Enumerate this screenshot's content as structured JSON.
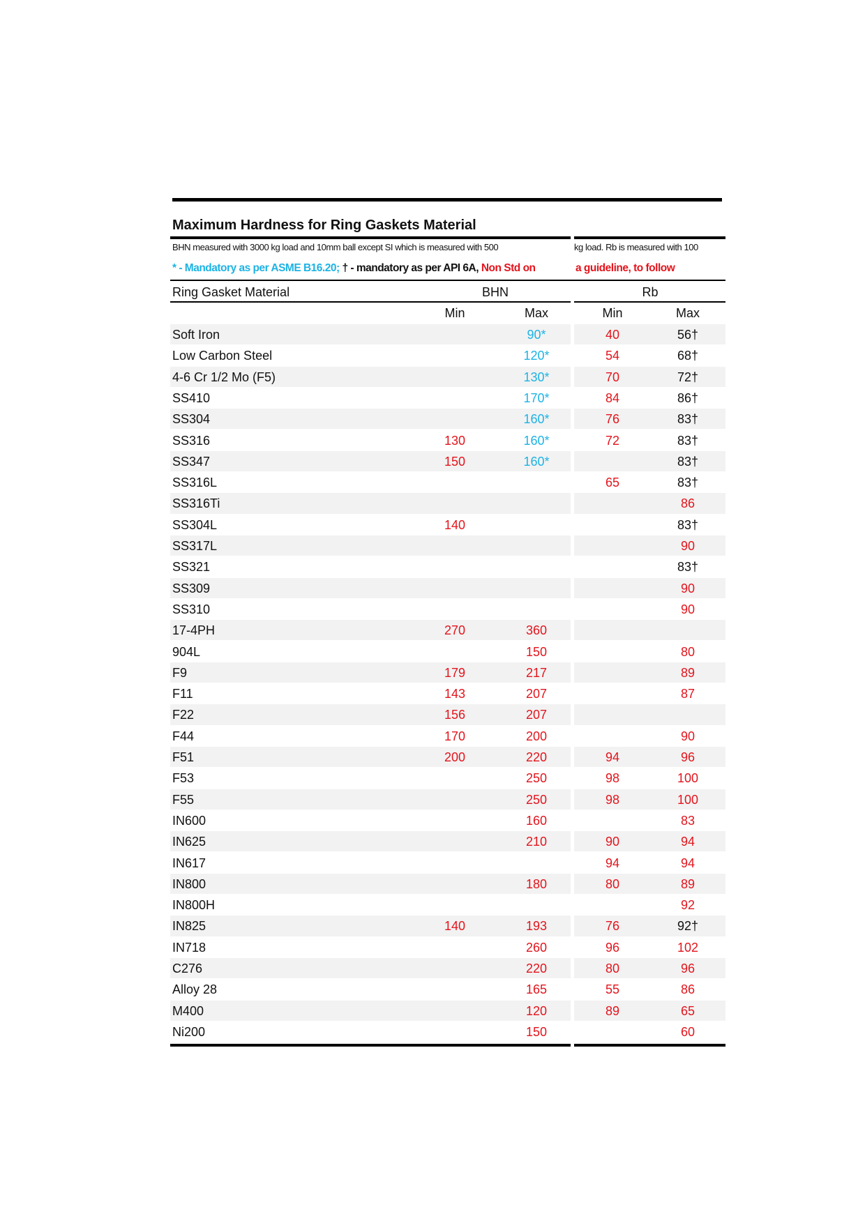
{
  "title": "Maximum Hardness for Ring Gaskets Material",
  "subtitle": [
    "BHN measured with 3000 kg load and 10mm ball except SI which is measured with 500",
    "kg load. Rb is measured with 100"
  ],
  "legend": [
    "* - Mandatory as per ASME B16.20;",
    "† - mandatory as per API 6A,",
    "Non Std on",
    "a guideline, to follow"
  ],
  "table": {
    "header": [
      "Ring Gasket Material",
      "BHN",
      "Rb"
    ],
    "subheader": [
      "Min",
      "Max",
      "Min",
      "Max"
    ],
    "rows": [
      [
        "Soft Iron",
        null,
        "90*",
        40,
        "56†"
      ],
      [
        "Low Carbon Steel",
        null,
        "120*",
        54,
        "68†"
      ],
      [
        "4-6 Cr 1/2 Mo (F5)",
        null,
        "130*",
        70,
        "72†"
      ],
      [
        "SS410",
        null,
        "170*",
        84,
        "86†"
      ],
      [
        "SS304",
        null,
        "160*",
        76,
        "83†"
      ],
      [
        "SS316",
        130,
        "160*",
        72,
        "83†"
      ],
      [
        "SS347",
        150,
        "160*",
        null,
        "83†"
      ],
      [
        "SS316L",
        null,
        null,
        65,
        "83†"
      ],
      [
        "SS316Ti",
        null,
        null,
        null,
        86
      ],
      [
        "SS304L",
        140,
        null,
        null,
        "83†"
      ],
      [
        "SS317L",
        null,
        null,
        null,
        90
      ],
      [
        "SS321",
        null,
        null,
        null,
        "83†"
      ],
      [
        "SS309",
        null,
        null,
        null,
        90
      ],
      [
        "SS310",
        null,
        null,
        null,
        90
      ],
      [
        "17-4PH",
        270,
        360,
        null,
        null
      ],
      [
        "904L",
        null,
        150,
        null,
        80
      ],
      [
        "F9",
        179,
        217,
        null,
        89
      ],
      [
        "F11",
        143,
        207,
        null,
        87
      ],
      [
        "F22",
        156,
        207,
        null,
        null
      ],
      [
        "F44",
        170,
        200,
        null,
        90
      ],
      [
        "F51",
        200,
        220,
        94,
        96
      ],
      [
        "F53",
        null,
        250,
        98,
        100
      ],
      [
        "F55",
        null,
        250,
        98,
        100
      ],
      [
        "IN600",
        null,
        160,
        null,
        83
      ],
      [
        "IN625",
        null,
        210,
        90,
        94
      ],
      [
        "IN617",
        null,
        null,
        94,
        94
      ],
      [
        "IN800",
        null,
        180,
        80,
        89
      ],
      [
        "IN800H",
        null,
        null,
        null,
        92
      ],
      [
        "IN825",
        140,
        193,
        76,
        "92†"
      ],
      [
        "IN718",
        null,
        260,
        96,
        102
      ],
      [
        "C276",
        null,
        220,
        80,
        96
      ],
      [
        "Alloy 28",
        null,
        165,
        55,
        86
      ],
      [
        "M400",
        null,
        120,
        89,
        65
      ],
      [
        "Ni200",
        null,
        150,
        null,
        60
      ]
    ]
  }
}
